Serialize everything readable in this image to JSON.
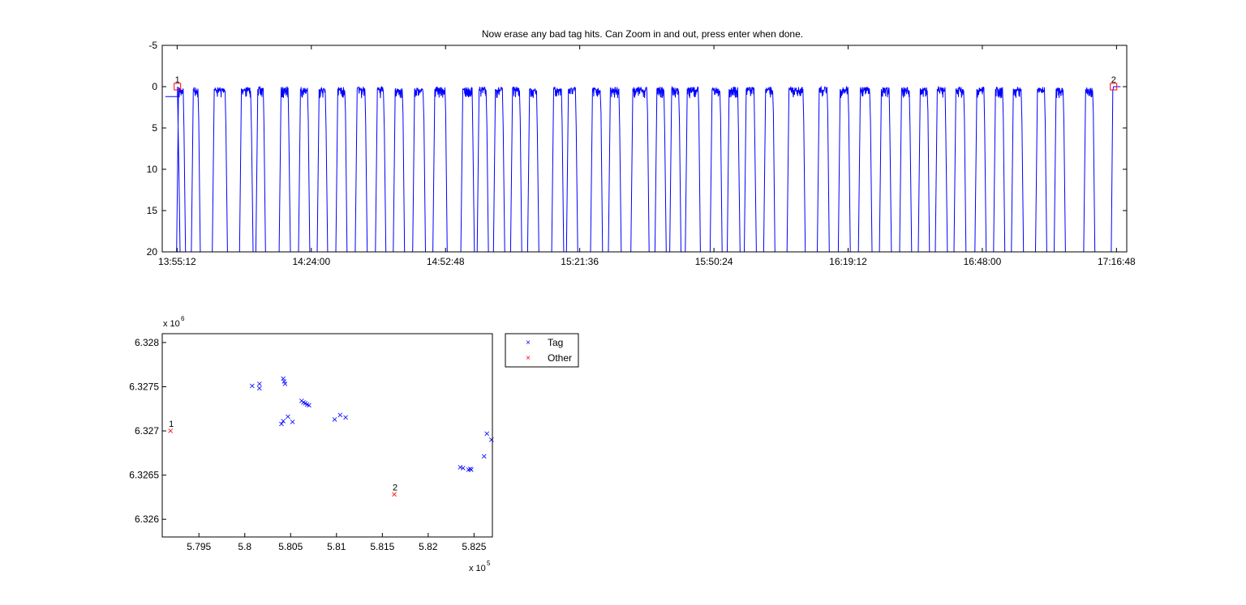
{
  "title": "Now erase any bad tag hits. Can Zoom in and out, press enter when done.",
  "colors": {
    "tag": "#0000ff",
    "other": "#ff0000",
    "axis": "#000000"
  },
  "chart_data": [
    {
      "type": "line",
      "title": "Now erase any bad tag hits. Can Zoom in and out, press enter when done.",
      "xlabel": "",
      "ylabel": "",
      "y_reversed": true,
      "ylim": [
        -5,
        20
      ],
      "yticks": [
        "-5",
        "0",
        "5",
        "10",
        "15",
        "20"
      ],
      "xlim": [
        "13:52:00",
        "17:19:00"
      ],
      "xticks": [
        "13:55:12",
        "14:24:00",
        "14:52:48",
        "15:21:36",
        "15:50:24",
        "16:19:12",
        "16:48:00",
        "17:16:48"
      ],
      "grid": false,
      "series_color": "#0000ff",
      "surface_segments": [
        [
          "13:55:30",
          "13:56:30"
        ],
        [
          "13:58:40",
          "13:59:40"
        ],
        [
          "14:03:10",
          "14:05:30"
        ],
        [
          "14:09:00",
          "14:11:00"
        ],
        [
          "14:12:30",
          "14:13:40"
        ],
        [
          "14:17:30",
          "14:19:00"
        ],
        [
          "14:21:40",
          "14:23:10"
        ],
        [
          "14:25:40",
          "14:27:00"
        ],
        [
          "14:29:40",
          "14:31:10"
        ],
        [
          "14:33:50",
          "14:35:30"
        ],
        [
          "14:38:10",
          "14:39:30"
        ],
        [
          "14:42:00",
          "14:43:30"
        ],
        [
          "14:46:10",
          "14:48:00"
        ],
        [
          "14:50:30",
          "14:52:40"
        ],
        [
          "14:56:30",
          "14:58:30"
        ],
        [
          "15:00:00",
          "15:01:30"
        ],
        [
          "15:03:30",
          "15:05:00"
        ],
        [
          "15:07:10",
          "15:08:40"
        ],
        [
          "15:10:50",
          "15:12:20"
        ],
        [
          "15:16:00",
          "15:17:40"
        ],
        [
          "15:19:10",
          "15:20:40"
        ],
        [
          "15:24:20",
          "15:26:00"
        ],
        [
          "15:28:10",
          "15:30:00"
        ],
        [
          "15:33:00",
          "15:36:00"
        ],
        [
          "15:38:10",
          "15:39:40"
        ],
        [
          "15:41:20",
          "15:42:50"
        ],
        [
          "15:44:40",
          "15:47:00"
        ],
        [
          "15:50:00",
          "15:51:40"
        ],
        [
          "15:53:40",
          "15:55:30"
        ],
        [
          "15:57:20",
          "15:59:00"
        ],
        [
          "16:01:30",
          "16:03:00"
        ],
        [
          "16:06:30",
          "16:09:30"
        ],
        [
          "16:13:00",
          "16:14:40"
        ],
        [
          "16:17:30",
          "16:19:10"
        ],
        [
          "16:21:50",
          "16:23:50"
        ],
        [
          "16:26:20",
          "16:28:00"
        ],
        [
          "16:30:40",
          "16:32:20"
        ],
        [
          "16:34:40",
          "16:36:10"
        ],
        [
          "16:38:20",
          "16:40:00"
        ],
        [
          "16:42:20",
          "16:44:00"
        ],
        [
          "16:46:50",
          "16:48:20"
        ],
        [
          "16:50:50",
          "16:52:20"
        ],
        [
          "16:54:40",
          "16:56:20"
        ],
        [
          "16:59:50",
          "17:01:20"
        ],
        [
          "17:03:50",
          "17:05:20"
        ],
        [
          "17:10:10",
          "17:11:40"
        ]
      ],
      "pre_deploy_depth": 1.2,
      "post_surface_start": "17:16:00",
      "markers": [
        {
          "label": "1",
          "time": "13:55:15",
          "depth": 0
        },
        {
          "label": "2",
          "time": "17:16:10",
          "depth": 0
        }
      ]
    },
    {
      "type": "scatter",
      "title": "",
      "xlabel": "",
      "ylabel": "",
      "xlim": [
        579100,
        582700
      ],
      "ylim": [
        6325800,
        6328100
      ],
      "xticks": [
        "5.795",
        "5.8",
        "5.805",
        "5.81",
        "5.815",
        "5.82",
        "5.825"
      ],
      "yticks": [
        "6.326",
        "6.3265",
        "6.327",
        "6.3275",
        "6.328"
      ],
      "x_exponent": "x 10",
      "x_exponent_power": "5",
      "y_exponent": "x 10",
      "y_exponent_power": "6",
      "legend": {
        "placement": "top-right-outside",
        "entries": [
          "Tag",
          "Other"
        ]
      },
      "series": [
        {
          "name": "Tag",
          "color": "#0000ff",
          "x": [
            580080,
            580160,
            580160,
            580420,
            580430,
            580440,
            580400,
            580420,
            580470,
            580520,
            580620,
            580640,
            580660,
            580680,
            580700,
            580980,
            581040,
            581100,
            582350,
            582380,
            582440,
            582460,
            582470,
            582610,
            582640,
            582690
          ],
          "y": [
            6327510,
            6327530,
            6327480,
            6327590,
            6327560,
            6327530,
            6327080,
            6327110,
            6327160,
            6327100,
            6327340,
            6327320,
            6327310,
            6327300,
            6327290,
            6327130,
            6327180,
            6327150,
            6326590,
            6326580,
            6326560,
            6326570,
            6326560,
            6326710,
            6326970,
            6326900
          ]
        },
        {
          "name": "Other",
          "color": "#ff0000",
          "x": [
            579190,
            581630
          ],
          "y": [
            6327000,
            6326280
          ],
          "labels": [
            "1",
            "2"
          ]
        }
      ]
    }
  ]
}
